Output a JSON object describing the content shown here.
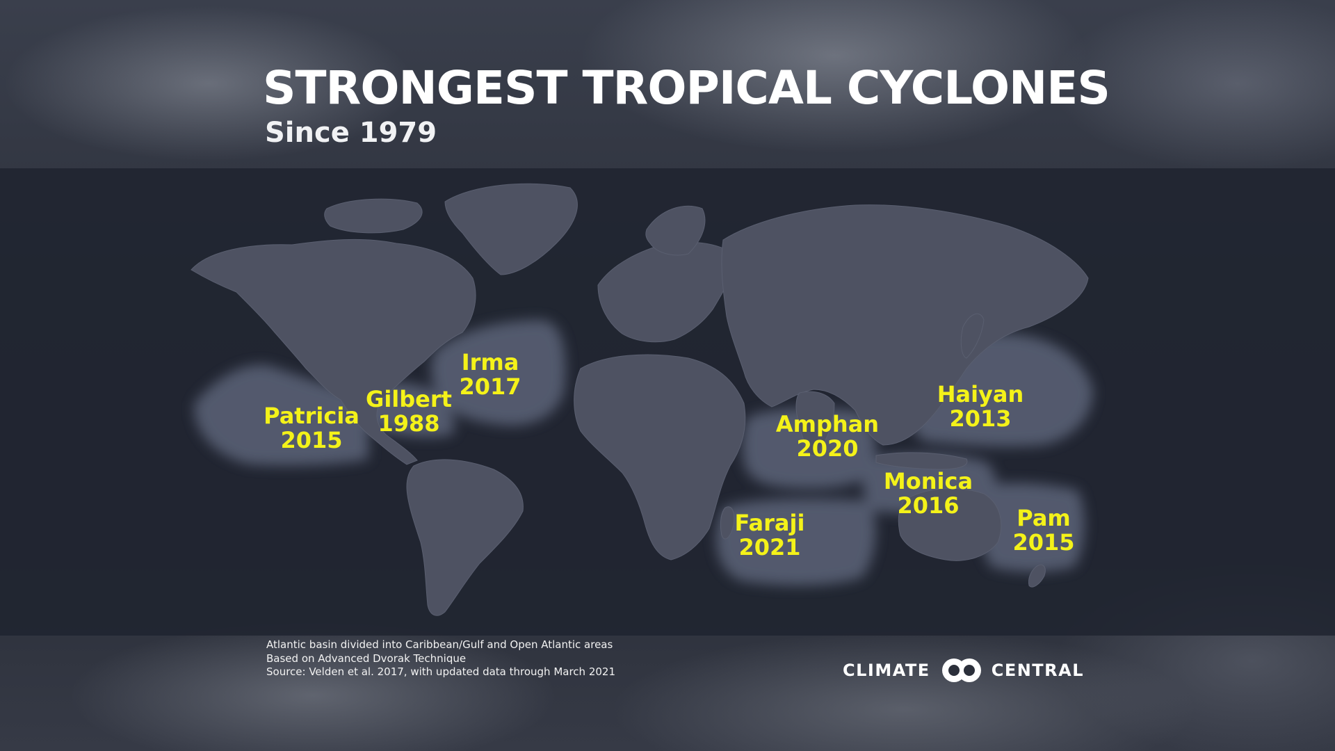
{
  "title": "STRONGEST TROPICAL CYCLONES",
  "subtitle": "Since 1979",
  "colors": {
    "label": "#f4f219",
    "land": "#4e5262",
    "basin": "#5c6378",
    "band": "#202430"
  },
  "storms": [
    {
      "name": "Patricia",
      "year": "2015"
    },
    {
      "name": "Gilbert",
      "year": "1988"
    },
    {
      "name": "Irma",
      "year": "2017"
    },
    {
      "name": "Haiyan",
      "year": "2013"
    },
    {
      "name": "Amphan",
      "year": "2020"
    },
    {
      "name": "Monica",
      "year": "2016"
    },
    {
      "name": "Faraji",
      "year": "2021"
    },
    {
      "name": "Pam",
      "year": "2015"
    }
  ],
  "footer": {
    "line1": "Atlantic basin divided into Caribbean/Gulf and Open Atlantic areas",
    "line2": "Based on Advanced Dvorak Technique",
    "line3": "Source: Velden et al. 2017, with updated data through March 2021"
  },
  "logo": {
    "left_text": "CLIMATE",
    "right_text": "CENTRAL"
  }
}
